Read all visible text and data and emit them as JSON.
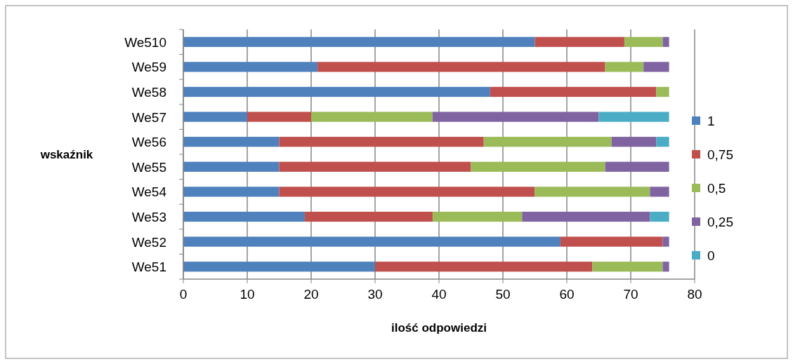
{
  "chart_data": {
    "type": "bar",
    "orientation": "horizontal",
    "stacked": true,
    "xlabel": "ilość odpowiedzi",
    "ylabel": "wskaźnik",
    "categories": [
      "We510",
      "We59",
      "We58",
      "We57",
      "We56",
      "We55",
      "We54",
      "We53",
      "We52",
      "We51"
    ],
    "series": [
      {
        "name": "1",
        "color": "#4f81bd",
        "values": [
          55,
          21,
          48,
          10,
          15,
          15,
          15,
          19,
          59,
          30
        ]
      },
      {
        "name": "0,75",
        "color": "#c0504d",
        "values": [
          14,
          45,
          26,
          10,
          32,
          30,
          40,
          20,
          16,
          34
        ]
      },
      {
        "name": "0,5",
        "color": "#9bbb59",
        "values": [
          6,
          6,
          2,
          19,
          20,
          21,
          18,
          14,
          0,
          11
        ]
      },
      {
        "name": "0,25",
        "color": "#8064a2",
        "values": [
          1,
          4,
          0,
          26,
          7,
          10,
          3,
          20,
          1,
          1
        ]
      },
      {
        "name": "0",
        "color": "#4bacc6",
        "values": [
          0,
          0,
          0,
          11,
          2,
          0,
          0,
          3,
          0,
          0
        ]
      }
    ],
    "xlim": [
      0,
      80
    ],
    "xticks": [
      0,
      10,
      20,
      30,
      40,
      50,
      60,
      70,
      80
    ],
    "grid": "x",
    "legend": "right"
  }
}
